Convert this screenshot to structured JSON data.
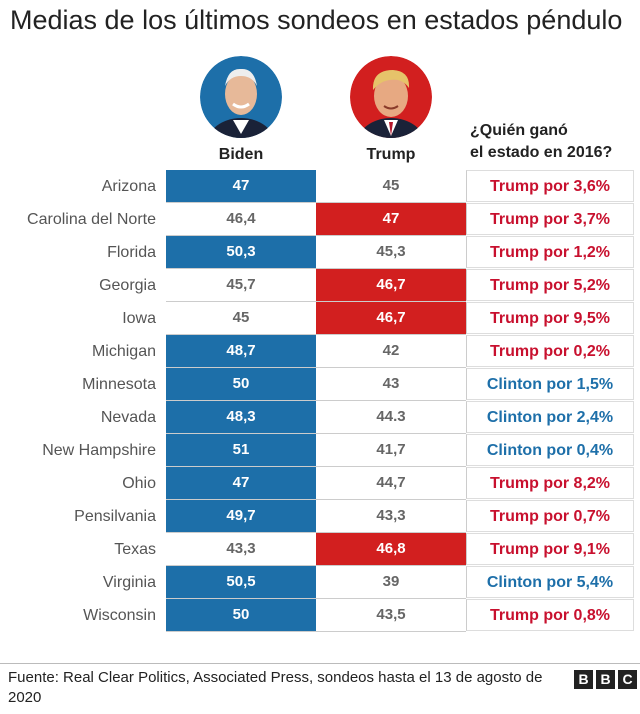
{
  "title": "Medias de los últimos sondeos en estados péndulo",
  "columns": {
    "biden": "Biden",
    "trump": "Trump"
  },
  "who_won_header": {
    "line1": "¿Quién ganó",
    "line2": "el estado en 2016?"
  },
  "colors": {
    "dem": "#1d6fa9",
    "rep": "#d21f1f"
  },
  "chart_data": {
    "type": "table",
    "title": "Medias de los últimos sondeos en estados péndulo",
    "columns": [
      "Biden",
      "Trump",
      "¿Quién ganó el estado en 2016?"
    ],
    "rows": [
      {
        "state": "Arizona",
        "biden": "47",
        "trump": "45",
        "leader": "biden",
        "result": "Trump por 3,6%",
        "party": "rep"
      },
      {
        "state": "Carolina del Norte",
        "biden": "46,4",
        "trump": "47",
        "leader": "trump",
        "result": "Trump por 3,7%",
        "party": "rep"
      },
      {
        "state": "Florida",
        "biden": "50,3",
        "trump": "45,3",
        "leader": "biden",
        "result": "Trump por 1,2%",
        "party": "rep"
      },
      {
        "state": "Georgia",
        "biden": "45,7",
        "trump": "46,7",
        "leader": "trump",
        "result": "Trump por 5,2%",
        "party": "rep"
      },
      {
        "state": "Iowa",
        "biden": "45",
        "trump": "46,7",
        "leader": "trump",
        "result": "Trump por 9,5%",
        "party": "rep"
      },
      {
        "state": "Michigan",
        "biden": "48,7",
        "trump": "42",
        "leader": "biden",
        "result": "Trump por 0,2%",
        "party": "rep"
      },
      {
        "state": "Minnesota",
        "biden": "50",
        "trump": "43",
        "leader": "biden",
        "result": "Clinton por 1,5%",
        "party": "dem"
      },
      {
        "state": "Nevada",
        "biden": "48,3",
        "trump": "44.3",
        "leader": "biden",
        "result": "Clinton por 2,4%",
        "party": "dem"
      },
      {
        "state": "New Hampshire",
        "biden": "51",
        "trump": "41,7",
        "leader": "biden",
        "result": "Clinton por 0,4%",
        "party": "dem"
      },
      {
        "state": "Ohio",
        "biden": "47",
        "trump": "44,7",
        "leader": "biden",
        "result": "Trump por 8,2%",
        "party": "rep"
      },
      {
        "state": "Pensilvania",
        "biden": "49,7",
        "trump": "43,3",
        "leader": "biden",
        "result": "Trump por 0,7%",
        "party": "rep"
      },
      {
        "state": "Texas",
        "biden": "43,3",
        "trump": "46,8",
        "leader": "trump",
        "result": "Trump por 9,1%",
        "party": "rep"
      },
      {
        "state": "Virginia",
        "biden": "50,5",
        "trump": "39",
        "leader": "biden",
        "result": "Clinton por 5,4%",
        "party": "dem"
      },
      {
        "state": "Wisconsin",
        "biden": "50",
        "trump": "43,5",
        "leader": "biden",
        "result": "Trump por 0,8%",
        "party": "rep"
      }
    ]
  },
  "source": "Fuente: Real Clear Politics, Associated Press, sondeos hasta el 13 de agosto de 2020",
  "logo": [
    "B",
    "B",
    "C"
  ]
}
